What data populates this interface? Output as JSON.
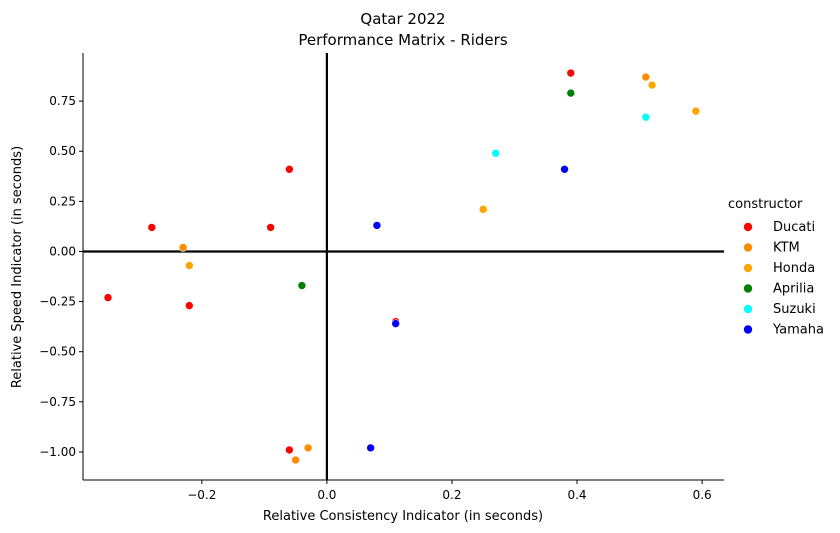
{
  "chart_data": {
    "type": "scatter",
    "title": "Qatar 2022",
    "subtitle": "Performance Matrix - Riders",
    "xlabel": "Relative Consistency Indicator (in seconds)",
    "ylabel": "Relative Speed Indicator (in seconds)",
    "xlim": [
      -0.39,
      0.635
    ],
    "ylim": [
      -1.14,
      0.99
    ],
    "x_ticks": [
      -0.2,
      0.0,
      0.2,
      0.4,
      0.6
    ],
    "x_tick_labels": [
      "−0.2",
      "0.0",
      "0.2",
      "0.4",
      "0.6"
    ],
    "y_ticks": [
      0.75,
      0.5,
      0.25,
      0.0,
      -0.25,
      -0.5,
      -0.75,
      -1.0
    ],
    "y_tick_labels": [
      "0.75",
      "0.50",
      "0.25",
      "0.00",
      "−0.25",
      "−0.50",
      "−0.75",
      "−1.00"
    ],
    "grid": false,
    "reference_lines": {
      "x": 0,
      "y": 0
    },
    "legend": {
      "title": "constructor",
      "placement": "right",
      "entries": [
        {
          "name": "Ducati",
          "color": "#ff0000"
        },
        {
          "name": "KTM",
          "color": "#ff8c00"
        },
        {
          "name": "Honda",
          "color": "#ffa500"
        },
        {
          "name": "Aprilia",
          "color": "#008000"
        },
        {
          "name": "Suzuki",
          "color": "#00ffff"
        },
        {
          "name": "Yamaha",
          "color": "#0000ff"
        }
      ]
    },
    "series": [
      {
        "name": "Ducati",
        "color": "#ff0000",
        "points": [
          {
            "x": 0.39,
            "y": 0.89
          },
          {
            "x": -0.06,
            "y": 0.41
          },
          {
            "x": -0.28,
            "y": 0.12
          },
          {
            "x": -0.09,
            "y": 0.12
          },
          {
            "x": -0.35,
            "y": -0.23
          },
          {
            "x": -0.22,
            "y": -0.27
          },
          {
            "x": 0.11,
            "y": -0.35
          },
          {
            "x": -0.06,
            "y": -0.99
          }
        ]
      },
      {
        "name": "KTM",
        "color": "#ff8c00",
        "points": [
          {
            "x": 0.51,
            "y": 0.87
          },
          {
            "x": -0.23,
            "y": 0.02
          },
          {
            "x": -0.03,
            "y": -0.98
          },
          {
            "x": -0.05,
            "y": -1.04
          }
        ]
      },
      {
        "name": "Honda",
        "color": "#ffa500",
        "points": [
          {
            "x": 0.52,
            "y": 0.83
          },
          {
            "x": 0.59,
            "y": 0.7
          },
          {
            "x": 0.25,
            "y": 0.21
          },
          {
            "x": -0.22,
            "y": -0.07
          }
        ]
      },
      {
        "name": "Aprilia",
        "color": "#008000",
        "points": [
          {
            "x": 0.39,
            "y": 0.79
          },
          {
            "x": -0.04,
            "y": -0.17
          }
        ]
      },
      {
        "name": "Suzuki",
        "color": "#00ffff",
        "points": [
          {
            "x": 0.51,
            "y": 0.67
          },
          {
            "x": 0.27,
            "y": 0.49
          }
        ]
      },
      {
        "name": "Yamaha",
        "color": "#0000ff",
        "points": [
          {
            "x": 0.38,
            "y": 0.41
          },
          {
            "x": 0.08,
            "y": 0.13
          },
          {
            "x": 0.11,
            "y": -0.36
          },
          {
            "x": 0.07,
            "y": -0.98
          }
        ]
      }
    ]
  }
}
